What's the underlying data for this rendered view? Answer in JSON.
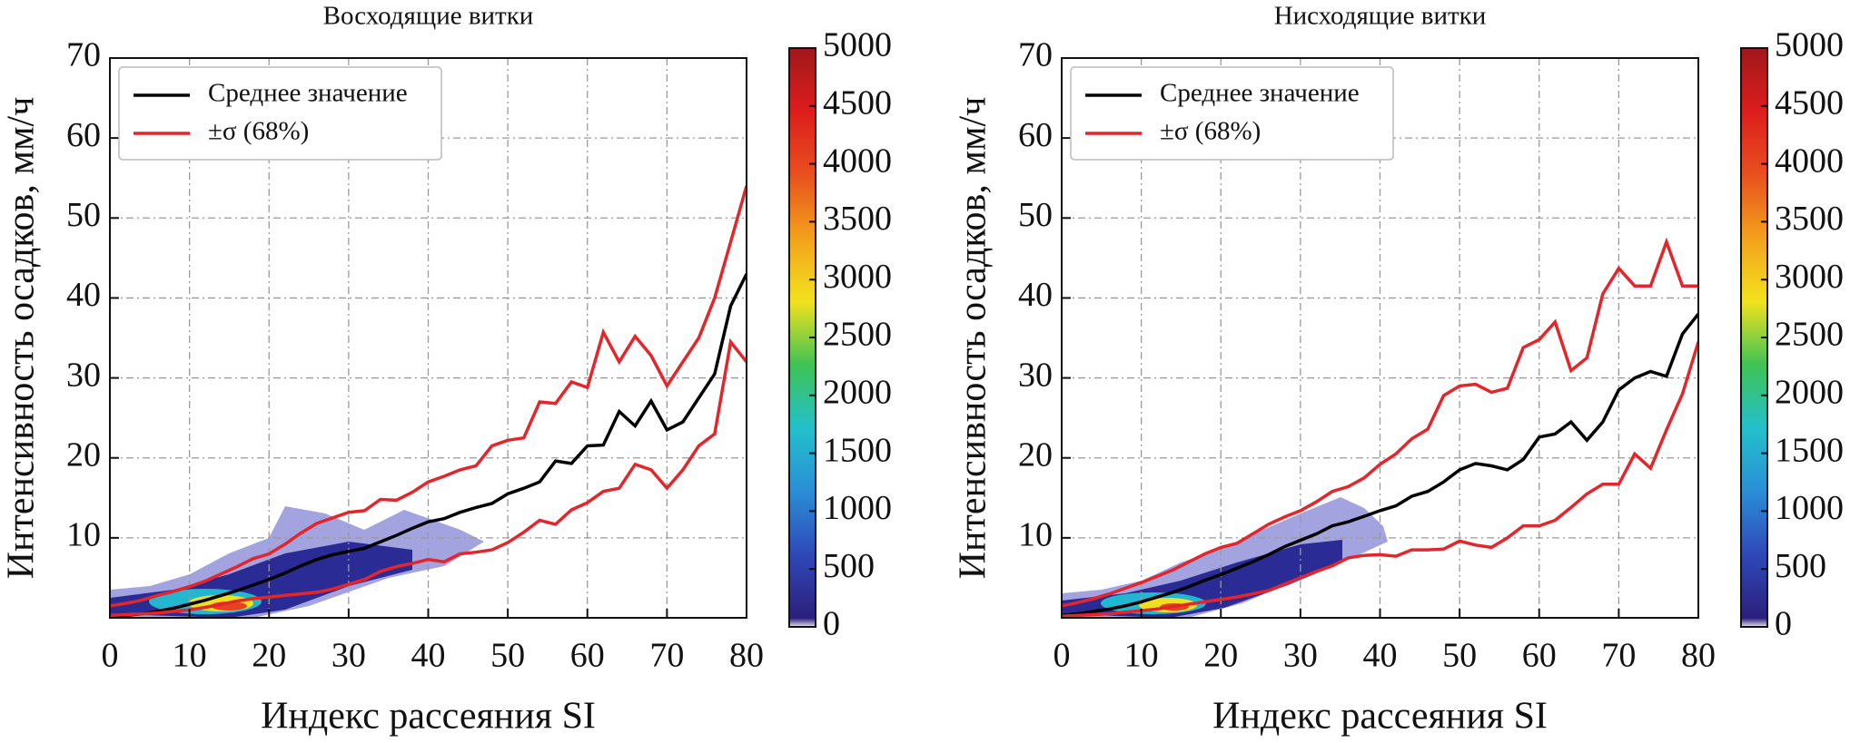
{
  "chart_data": [
    {
      "type": "line",
      "title": "Восходящие витки",
      "xlabel": "Индекс рассеяния SI",
      "ylabel": "Интенсивность осадков, мм/ч",
      "x": [
        0,
        2,
        4,
        6,
        8,
        10,
        12,
        14,
        16,
        18,
        20,
        22,
        24,
        26,
        28,
        30,
        32,
        34,
        36,
        38,
        40,
        42,
        44,
        46,
        48,
        50,
        52,
        54,
        56,
        58,
        60,
        62,
        64,
        66,
        68,
        70,
        72,
        74,
        76,
        78,
        80
      ],
      "series": [
        {
          "name": "Среднее значение",
          "color": "#000000",
          "values": [
            0.2,
            0.3,
            0.5,
            0.8,
            1.2,
            1.7,
            2.2,
            2.8,
            3.4,
            4.1,
            4.8,
            5.6,
            6.5,
            7.3,
            7.9,
            8.3,
            8.7,
            9.5,
            10.3,
            11.2,
            12,
            12.4,
            13.2,
            13.8,
            14.3,
            15.5,
            16.2,
            17,
            19.6,
            19.3,
            21.5,
            21.6,
            25.8,
            24,
            27.1,
            23.5,
            24.5,
            27.5,
            30.5,
            39,
            43
          ]
        },
        {
          "name": "±σ (68%)",
          "color": "#e3262b",
          "values": [
            1.5,
            1.8,
            2.2,
            2.8,
            3.3,
            3.9,
            4.6,
            5.5,
            6.4,
            7.4,
            8,
            9.2,
            10.6,
            11.8,
            12.5,
            13.2,
            13.4,
            14.8,
            14.7,
            15.7,
            17,
            17.7,
            18.5,
            19,
            21.5,
            22.2,
            22.5,
            27,
            26.8,
            29.5,
            28.8,
            35.7,
            32,
            35.2,
            32.8,
            29,
            32,
            35,
            40,
            47,
            54
          ]
        },
        {
          "color": "#e3262b",
          "values": [
            0.3,
            0.4,
            0.5,
            0.6,
            0.8,
            1,
            1.3,
            1.7,
            2.1,
            2.4,
            2.6,
            2.8,
            3,
            3.2,
            3.6,
            4.2,
            4.8,
            5.8,
            6.4,
            6.8,
            7.3,
            7,
            8,
            8.2,
            8.5,
            9.4,
            10.7,
            12.2,
            11.7,
            13.5,
            14.4,
            15.8,
            16.2,
            19.2,
            18.5,
            16.2,
            18.5,
            21.5,
            23,
            34.5,
            32
          ]
        }
      ],
      "xlim": [
        0,
        80
      ],
      "ylim": [
        0,
        70
      ],
      "xticks": [
        0,
        10,
        20,
        30,
        40,
        50,
        60,
        70,
        80
      ],
      "yticks": [
        10,
        20,
        30,
        40,
        50,
        60,
        70
      ],
      "grid": true,
      "legend": "upper left",
      "colorbar": {
        "lim": [
          0,
          5000
        ],
        "ticks": [
          0,
          500,
          1000,
          1500,
          2000,
          2500,
          3000,
          3500,
          4000,
          4500,
          5000
        ],
        "colormap": [
          "#e6e6ee",
          "#2c1f7c",
          "#2f48b8",
          "#2a8ed6",
          "#23c0cc",
          "#3fc255",
          "#f2e21c",
          "#f3a11c",
          "#e8501e",
          "#dd1d1d",
          "#a0181a"
        ]
      }
    },
    {
      "type": "line",
      "title": "Нисходящие витки",
      "xlabel": "Индекс рассеяния SI",
      "ylabel": "Интенсивность осадков, мм/ч",
      "x": [
        0,
        2,
        4,
        6,
        8,
        10,
        12,
        14,
        16,
        18,
        20,
        22,
        24,
        26,
        28,
        30,
        32,
        34,
        36,
        38,
        40,
        42,
        44,
        46,
        48,
        50,
        52,
        54,
        56,
        58,
        60,
        62,
        64,
        66,
        68,
        70,
        72,
        74,
        76,
        78,
        80
      ],
      "series": [
        {
          "name": "Среднее значение",
          "color": "#000000",
          "values": [
            0.3,
            0.5,
            0.8,
            1.1,
            1.5,
            2,
            2.6,
            3.2,
            3.9,
            4.7,
            5.4,
            6.2,
            7,
            7.9,
            8.9,
            9.7,
            10.5,
            11.5,
            12,
            12.7,
            13.4,
            14,
            15.2,
            15.8,
            17,
            18.5,
            19.3,
            19,
            18.5,
            19.8,
            22.6,
            23,
            24.5,
            22.2,
            24.5,
            28.5,
            30,
            30.8,
            30.2,
            35.5,
            38
          ]
        },
        {
          "name": "±σ (68%)",
          "color": "#e3262b",
          "values": [
            1.5,
            1.9,
            2.4,
            3,
            3.7,
            4.4,
            5.2,
            6,
            7,
            8,
            8.8,
            9.3,
            10.5,
            11.7,
            12.6,
            13.4,
            14.5,
            15.8,
            16.4,
            17.5,
            19.2,
            20.5,
            22.4,
            23.6,
            27.8,
            29,
            29.2,
            28.2,
            28.7,
            33.8,
            34.8,
            37,
            30.9,
            32.5,
            40.5,
            43.7,
            41.5,
            41.5,
            47,
            41.5,
            41.5
          ]
        },
        {
          "color": "#e3262b",
          "values": [
            0.2,
            0.3,
            0.4,
            0.5,
            0.7,
            0.9,
            1.1,
            1.4,
            1.7,
            2,
            2.3,
            2.6,
            3,
            3.4,
            4.2,
            5,
            5.8,
            6.5,
            7.5,
            7.8,
            7.9,
            7.7,
            8.5,
            8.5,
            8.6,
            9.6,
            9.1,
            8.8,
            10,
            11.5,
            11.5,
            12.2,
            13.8,
            15.5,
            16.7,
            16.7,
            20.5,
            18.7,
            23.5,
            28,
            34.5
          ]
        }
      ],
      "xlim": [
        0,
        80
      ],
      "ylim": [
        0,
        70
      ],
      "xticks": [
        0,
        10,
        20,
        30,
        40,
        50,
        60,
        70,
        80
      ],
      "yticks": [
        10,
        20,
        30,
        40,
        50,
        60,
        70
      ],
      "grid": true,
      "legend": "upper left",
      "colorbar": {
        "lim": [
          0,
          5000
        ],
        "ticks": [
          0,
          500,
          1000,
          1500,
          2000,
          2500,
          3000,
          3500,
          4000,
          4500,
          5000
        ],
        "colormap": [
          "#e6e6ee",
          "#2c1f7c",
          "#2f48b8",
          "#2a8ed6",
          "#23c0cc",
          "#3fc255",
          "#f2e21c",
          "#f3a11c",
          "#e8501e",
          "#dd1d1d",
          "#a0181a"
        ]
      }
    }
  ]
}
